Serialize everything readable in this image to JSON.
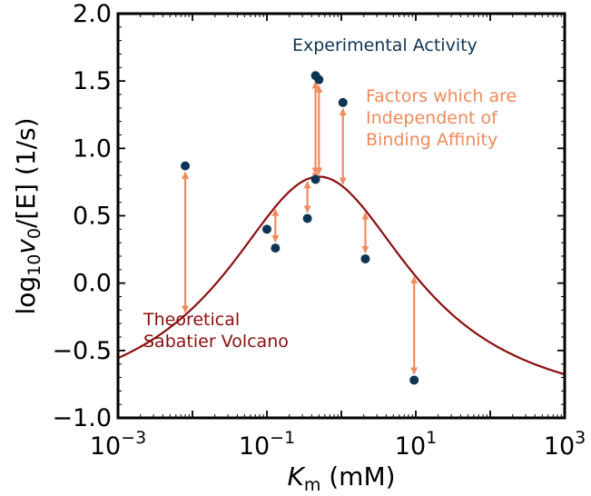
{
  "chart_data": {
    "type": "scatter",
    "x_scale": "log",
    "xlim": [
      0.001,
      1000
    ],
    "ylim": [
      -1.0,
      2.0
    ],
    "xlabel": {
      "base": "K",
      "sub": "m",
      "rest": " (mM)"
    },
    "ylabel": {
      "pre": "log",
      "sub": "10",
      "var": "v",
      "varsub": "0",
      "rest": "/[E] (1/s)"
    },
    "x_ticks": [
      {
        "value": 0.001,
        "base": "10",
        "exp": "−3"
      },
      {
        "value": 0.1,
        "base": "10",
        "exp": "−1"
      },
      {
        "value": 10,
        "base": "10",
        "exp": "1"
      },
      {
        "value": 1000,
        "base": "10",
        "exp": "3"
      }
    ],
    "y_ticks": [
      {
        "value": -1.0,
        "label": "−1.0"
      },
      {
        "value": -0.5,
        "label": "−0.5"
      },
      {
        "value": 0.0,
        "label": "0.0"
      },
      {
        "value": 0.5,
        "label": "0.5"
      },
      {
        "value": 1.0,
        "label": "1.0"
      },
      {
        "value": 1.5,
        "label": "1.5"
      },
      {
        "value": 2.0,
        "label": "2.0"
      }
    ],
    "grid": false,
    "colors": {
      "points": "#0d3553",
      "curve": "#8b0f0f",
      "arrows": "#f08a5d"
    },
    "volcano_curve": {
      "peak_x": 0.5,
      "peak_y": 0.79,
      "width_decades": 1.55,
      "sample_points": 240
    },
    "series": [
      {
        "name": "Experimental Activity",
        "points": [
          {
            "x": 0.008,
            "y": 0.87
          },
          {
            "x": 0.1,
            "y": 0.4
          },
          {
            "x": 0.13,
            "y": 0.26
          },
          {
            "x": 0.35,
            "y": 0.48
          },
          {
            "x": 0.45,
            "y": 0.77
          },
          {
            "x": 0.45,
            "y": 1.54
          },
          {
            "x": 0.5,
            "y": 1.51
          },
          {
            "x": 1.05,
            "y": 1.34
          },
          {
            "x": 2.1,
            "y": 0.18
          },
          {
            "x": 9.5,
            "y": -0.72
          }
        ]
      }
    ],
    "annotations": [
      {
        "text": "Experimental Activity",
        "color": "#0d3553"
      },
      {
        "text": "Factors which are",
        "color": "#f08a5d"
      },
      {
        "text": "Independent of",
        "color": "#f08a5d"
      },
      {
        "text": "Binding Affinity",
        "color": "#f08a5d"
      },
      {
        "text": "Theoretical",
        "color": "#8b0f0f"
      },
      {
        "text": "Sabatier Volcano",
        "color": "#8b0f0f"
      }
    ]
  }
}
